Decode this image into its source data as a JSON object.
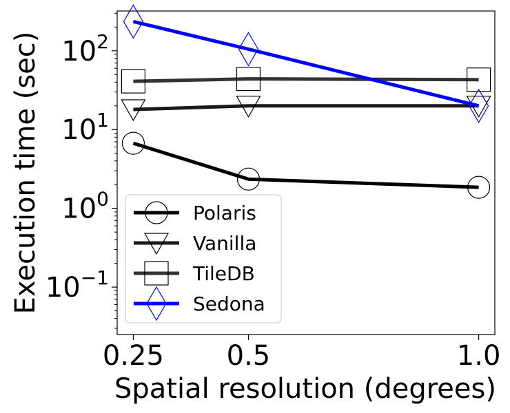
{
  "chart_data": {
    "type": "line",
    "title": "",
    "xlabel": "Spatial resolution (degrees)",
    "ylabel": "Execution time (sec)",
    "x": [
      0.25,
      0.5,
      1.0
    ],
    "x_tick_labels": [
      "0.25",
      "0.5",
      "1.0"
    ],
    "y_scale": "log",
    "ylim": [
      0.025,
      320
    ],
    "y_ticks": [
      {
        "base": "10",
        "exp": "2"
      },
      {
        "base": "10",
        "exp": "1"
      },
      {
        "base": "10",
        "exp": "0"
      },
      {
        "base": "10",
        "exp": "−1"
      }
    ],
    "y_tick_values": [
      100,
      10,
      1,
      0.1
    ],
    "grid": false,
    "legend_position": "bottom-left",
    "series": [
      {
        "name": "Polaris",
        "values": [
          6.7,
          2.35,
          1.85
        ],
        "color": "#000000",
        "marker": "circle"
      },
      {
        "name": "Vanilla",
        "values": [
          18,
          20,
          20
        ],
        "color": "#1a1a1a",
        "marker": "triangle-down"
      },
      {
        "name": "TileDB",
        "values": [
          41,
          44,
          43
        ],
        "color": "#333333",
        "marker": "square"
      },
      {
        "name": "Sedona",
        "values": [
          235,
          105,
          20
        ],
        "color": "#0000ff",
        "marker": "diamond"
      }
    ]
  }
}
